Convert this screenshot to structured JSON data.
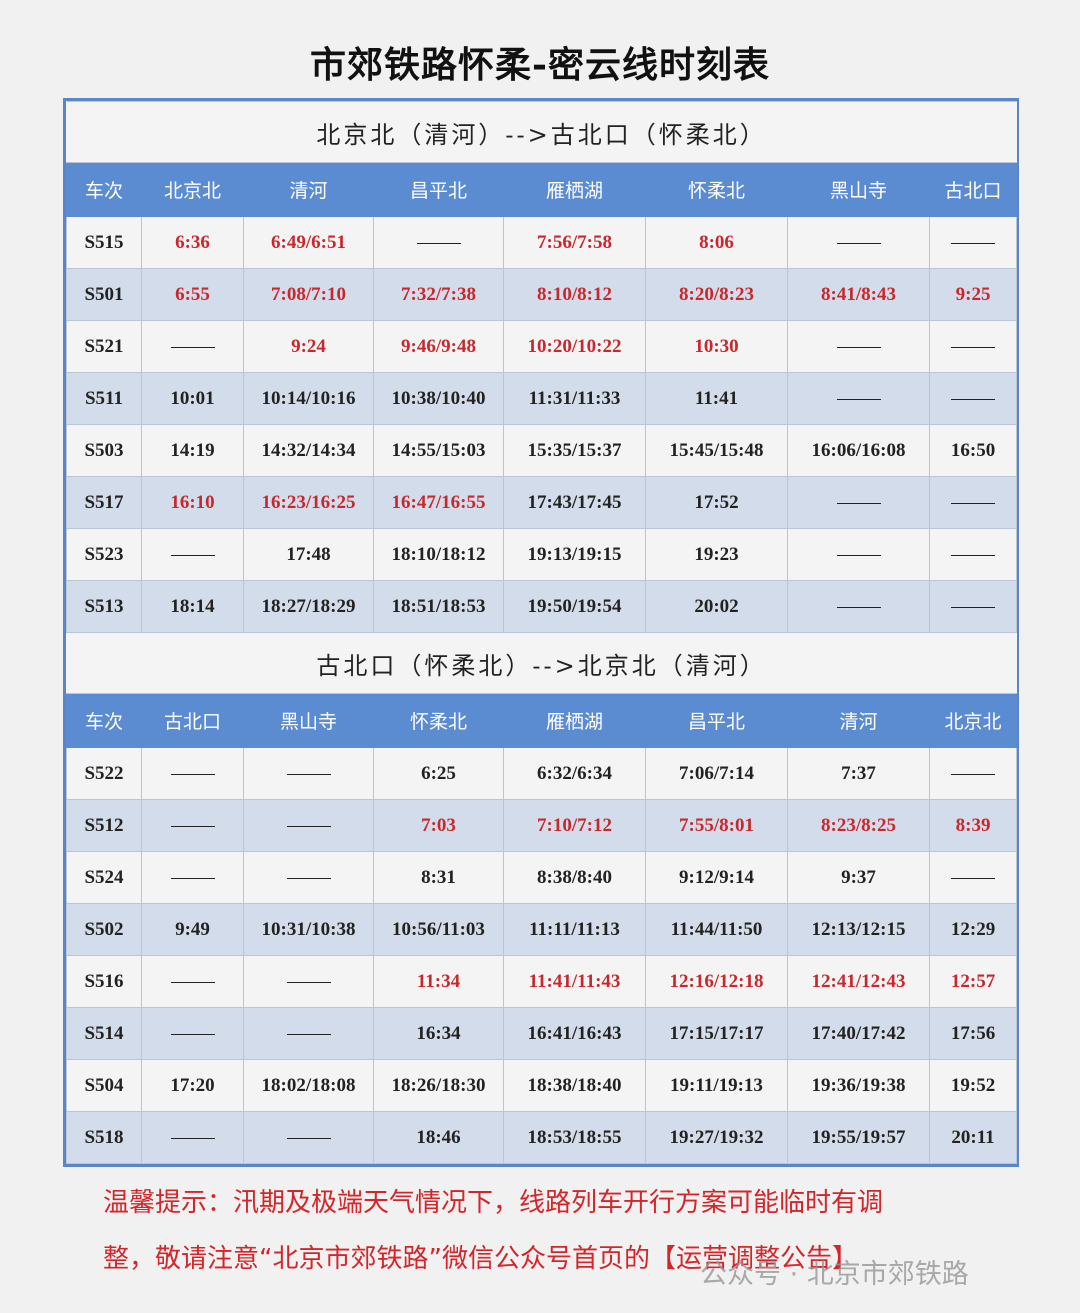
{
  "title": "市郊铁路怀柔-密云线时刻表",
  "colors": {
    "header_bg": "#5b8bd0",
    "red_text": "#c8282c",
    "row_alt": "#d3dcea",
    "border": "#5a86c8"
  },
  "sections": [
    {
      "heading": "北京北（清河）-->古北口（怀柔北）",
      "columns": [
        "车次",
        "北京北",
        "清河",
        "昌平北",
        "雁栖湖",
        "怀柔北",
        "黑山寺",
        "古北口"
      ],
      "rows": [
        {
          "train": "S515",
          "times": [
            "6:36",
            "6:49/6:51",
            "——",
            "7:56/7:58",
            "8:06",
            "——",
            "——"
          ],
          "red": [
            0,
            1,
            2,
            3,
            4,
            5,
            6
          ]
        },
        {
          "train": "S501",
          "times": [
            "6:55",
            "7:08/7:10",
            "7:32/7:38",
            "8:10/8:12",
            "8:20/8:23",
            "8:41/8:43",
            "9:25"
          ],
          "red": [
            0,
            1,
            2,
            3,
            4,
            5,
            6
          ]
        },
        {
          "train": "S521",
          "times": [
            "——",
            "9:24",
            "9:46/9:48",
            "10:20/10:22",
            "10:30",
            "——",
            "——"
          ],
          "red": [
            0,
            1,
            2,
            3,
            4,
            5,
            6
          ]
        },
        {
          "train": "S511",
          "times": [
            "10:01",
            "10:14/10:16",
            "10:38/10:40",
            "11:31/11:33",
            "11:41",
            "——",
            "——"
          ],
          "red": []
        },
        {
          "train": "S503",
          "times": [
            "14:19",
            "14:32/14:34",
            "14:55/15:03",
            "15:35/15:37",
            "15:45/15:48",
            "16:06/16:08",
            "16:50"
          ],
          "red": []
        },
        {
          "train": "S517",
          "times": [
            "16:10",
            "16:23/16:25",
            "16:47/16:55",
            "17:43/17:45",
            "17:52",
            "——",
            "——"
          ],
          "red": [
            0,
            1,
            2
          ]
        },
        {
          "train": "S523",
          "times": [
            "——",
            "17:48",
            "18:10/18:12",
            "19:13/19:15",
            "19:23",
            "——",
            "——"
          ],
          "red": []
        },
        {
          "train": "S513",
          "times": [
            "18:14",
            "18:27/18:29",
            "18:51/18:53",
            "19:50/19:54",
            "20:02",
            "——",
            "——"
          ],
          "red": []
        }
      ]
    },
    {
      "heading": "古北口（怀柔北）-->北京北（清河）",
      "columns": [
        "车次",
        "古北口",
        "黑山寺",
        "怀柔北",
        "雁栖湖",
        "昌平北",
        "清河",
        "北京北"
      ],
      "rows": [
        {
          "train": "S522",
          "times": [
            "——",
            "——",
            "6:25",
            "6:32/6:34",
            "7:06/7:14",
            "7:37",
            "——"
          ],
          "red": []
        },
        {
          "train": "S512",
          "times": [
            "——",
            "——",
            "7:03",
            "7:10/7:12",
            "7:55/8:01",
            "8:23/8:25",
            "8:39"
          ],
          "red": [
            0,
            1,
            2,
            3,
            4,
            5,
            6
          ]
        },
        {
          "train": "S524",
          "times": [
            "——",
            "——",
            "8:31",
            "8:38/8:40",
            "9:12/9:14",
            "9:37",
            "——"
          ],
          "red": []
        },
        {
          "train": "S502",
          "times": [
            "9:49",
            "10:31/10:38",
            "10:56/11:03",
            "11:11/11:13",
            "11:44/11:50",
            "12:13/12:15",
            "12:29"
          ],
          "red": []
        },
        {
          "train": "S516",
          "times": [
            "——",
            "——",
            "11:34",
            "11:41/11:43",
            "12:16/12:18",
            "12:41/12:43",
            "12:57"
          ],
          "red": [
            0,
            1,
            2,
            3,
            4,
            5,
            6
          ]
        },
        {
          "train": "S514",
          "times": [
            "——",
            "——",
            "16:34",
            "16:41/16:43",
            "17:15/17:17",
            "17:40/17:42",
            "17:56"
          ],
          "red": []
        },
        {
          "train": "S504",
          "times": [
            "17:20",
            "18:02/18:08",
            "18:26/18:30",
            "18:38/18:40",
            "19:11/19:13",
            "19:36/19:38",
            "19:52"
          ],
          "red": []
        },
        {
          "train": "S518",
          "times": [
            "——",
            "——",
            "18:46",
            "18:53/18:55",
            "19:27/19:32",
            "19:55/19:57",
            "20:11"
          ],
          "red": []
        }
      ]
    }
  ],
  "notice": {
    "line1": "温馨提示：汛期及极端天气情况下，线路列车开行方案可能临时有调",
    "line2": "整，敬请注意“北京市郊铁路”微信公众号首页的【运营调整公告】"
  },
  "watermark": "公众号 · 北京市郊铁路"
}
